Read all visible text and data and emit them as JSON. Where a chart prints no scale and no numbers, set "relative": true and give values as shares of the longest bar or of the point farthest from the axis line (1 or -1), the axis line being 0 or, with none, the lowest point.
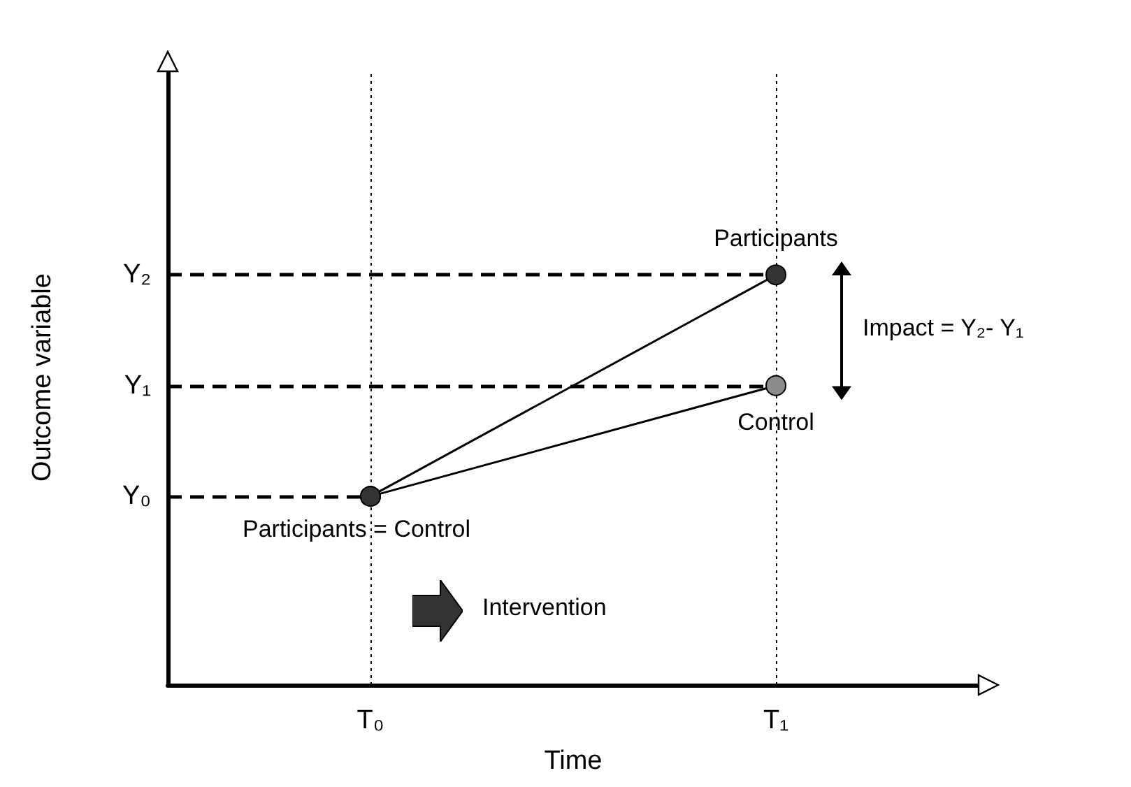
{
  "chart_data": {
    "type": "line",
    "relative": true,
    "xlabel": "Time",
    "ylabel": "Outcome variable",
    "categories": [
      "T₀",
      "T₁"
    ],
    "series": [
      {
        "name": "Participants",
        "color": "#333333",
        "values": [
          0.46,
          1
        ]
      },
      {
        "name": "Control",
        "color": "#8c8c8c",
        "values": [
          0.46,
          0.73
        ]
      }
    ],
    "ref_lines": [
      {
        "axis": "y",
        "value": 1,
        "label": "Y₂",
        "line_style": "dashed"
      },
      {
        "axis": "y",
        "value": 0.73,
        "label": "Y₁",
        "line_style": "dashed"
      },
      {
        "axis": "y",
        "value": 0.46,
        "label": "Y₀",
        "line_style": "dashed"
      }
    ],
    "annotations": [
      {
        "text": "Participants = Control",
        "x": "T₀",
        "y": 0.46
      },
      "Impact = Y₂- Y₁",
      "Intervention"
    ],
    "marker": "circle",
    "grid": "x",
    "legend": false
  }
}
